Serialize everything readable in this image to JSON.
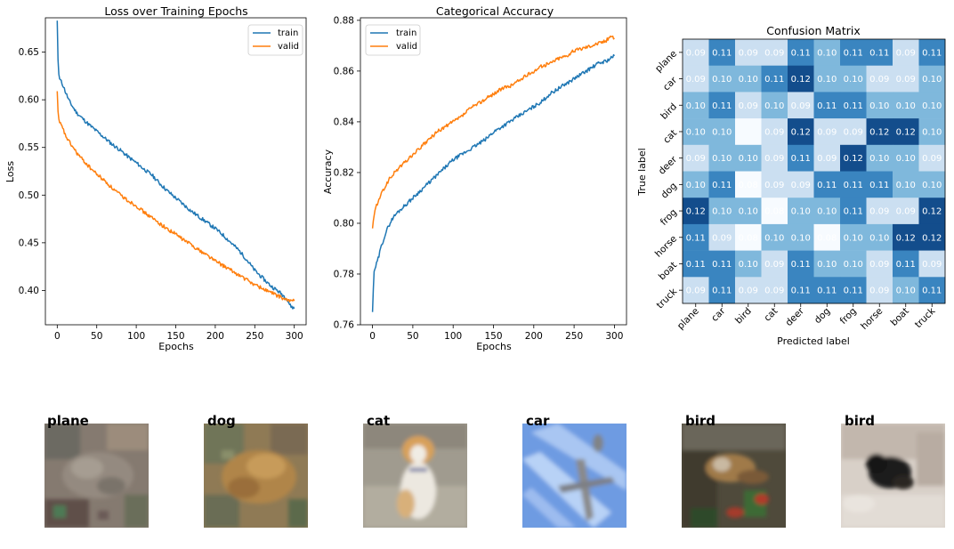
{
  "colors": {
    "train": "#1f77b4",
    "valid": "#ff7f0e",
    "axis": "#000000",
    "cmap_low": "#f7fbff",
    "cmap_high": "#08306b"
  },
  "chart_data": [
    {
      "type": "line",
      "title": "Loss over Training Epochs",
      "xlabel": "Epochs",
      "ylabel": "Loss",
      "xlim": [
        -15,
        315
      ],
      "ylim": [
        0.364,
        0.686
      ],
      "xticks": [
        0,
        50,
        100,
        150,
        200,
        250,
        300
      ],
      "yticks": [
        0.4,
        0.45,
        0.5,
        0.55,
        0.6,
        0.65
      ],
      "ytick_labels": [
        "0.40",
        "0.45",
        "0.50",
        "0.55",
        "0.60",
        "0.65"
      ],
      "grid": false,
      "legend": "top-right",
      "series": [
        {
          "name": "train",
          "x": [
            0,
            1,
            2,
            3,
            5,
            8,
            10,
            15,
            20,
            25,
            30,
            40,
            50,
            60,
            70,
            80,
            90,
            100,
            110,
            120,
            130,
            140,
            150,
            160,
            170,
            180,
            190,
            200,
            210,
            220,
            230,
            240,
            250,
            260,
            270,
            280,
            290,
            295,
            300
          ],
          "values": [
            0.683,
            0.642,
            0.627,
            0.622,
            0.619,
            0.614,
            0.609,
            0.599,
            0.592,
            0.586,
            0.582,
            0.574,
            0.567,
            0.56,
            0.553,
            0.547,
            0.54,
            0.534,
            0.527,
            0.521,
            0.512,
            0.504,
            0.497,
            0.49,
            0.483,
            0.477,
            0.471,
            0.465,
            0.458,
            0.45,
            0.442,
            0.432,
            0.421,
            0.413,
            0.405,
            0.399,
            0.392,
            0.384,
            0.381
          ]
        },
        {
          "name": "valid",
          "x": [
            0,
            1,
            2,
            3,
            5,
            8,
            10,
            15,
            20,
            25,
            30,
            40,
            50,
            60,
            70,
            80,
            90,
            100,
            110,
            120,
            130,
            140,
            150,
            160,
            170,
            180,
            190,
            200,
            210,
            220,
            230,
            240,
            250,
            260,
            270,
            280,
            290,
            295,
            300
          ],
          "values": [
            0.609,
            0.588,
            0.58,
            0.576,
            0.573,
            0.568,
            0.563,
            0.556,
            0.55,
            0.544,
            0.539,
            0.53,
            0.522,
            0.515,
            0.507,
            0.5,
            0.494,
            0.489,
            0.482,
            0.476,
            0.47,
            0.464,
            0.459,
            0.453,
            0.448,
            0.442,
            0.437,
            0.431,
            0.426,
            0.421,
            0.416,
            0.411,
            0.406,
            0.402,
            0.398,
            0.394,
            0.39,
            0.389,
            0.389
          ]
        }
      ]
    },
    {
      "type": "line",
      "title": "Categorical Accuracy",
      "xlabel": "Epochs",
      "ylabel": "Accuracy",
      "xlim": [
        -15,
        315
      ],
      "ylim": [
        0.76,
        0.881
      ],
      "xticks": [
        0,
        50,
        100,
        150,
        200,
        250,
        300
      ],
      "yticks": [
        0.76,
        0.78,
        0.8,
        0.82,
        0.84,
        0.86,
        0.88
      ],
      "ytick_labels": [
        "0.76",
        "0.78",
        "0.80",
        "0.82",
        "0.84",
        "0.86",
        "0.88"
      ],
      "grid": false,
      "legend": "top-left",
      "series": [
        {
          "name": "train",
          "x": [
            0,
            1,
            2,
            3,
            5,
            8,
            10,
            15,
            20,
            25,
            30,
            40,
            50,
            60,
            70,
            80,
            90,
            100,
            110,
            120,
            130,
            140,
            150,
            160,
            170,
            180,
            190,
            200,
            210,
            220,
            230,
            240,
            250,
            260,
            270,
            280,
            290,
            295,
            300
          ],
          "values": [
            0.765,
            0.774,
            0.781,
            0.782,
            0.784,
            0.787,
            0.79,
            0.795,
            0.799,
            0.802,
            0.804,
            0.807,
            0.81,
            0.813,
            0.816,
            0.819,
            0.822,
            0.825,
            0.827,
            0.829,
            0.831,
            0.833,
            0.836,
            0.838,
            0.84,
            0.842,
            0.844,
            0.846,
            0.848,
            0.851,
            0.853,
            0.855,
            0.857,
            0.859,
            0.861,
            0.863,
            0.864,
            0.865,
            0.866
          ]
        },
        {
          "name": "valid",
          "x": [
            0,
            1,
            2,
            3,
            5,
            8,
            10,
            15,
            20,
            25,
            30,
            40,
            50,
            60,
            70,
            80,
            90,
            100,
            110,
            120,
            130,
            140,
            150,
            160,
            170,
            180,
            190,
            200,
            210,
            220,
            230,
            240,
            250,
            260,
            270,
            280,
            290,
            295,
            300
          ],
          "values": [
            0.798,
            0.801,
            0.803,
            0.805,
            0.807,
            0.809,
            0.811,
            0.814,
            0.817,
            0.819,
            0.821,
            0.824,
            0.827,
            0.83,
            0.833,
            0.836,
            0.838,
            0.84,
            0.842,
            0.845,
            0.847,
            0.849,
            0.851,
            0.853,
            0.854,
            0.856,
            0.858,
            0.86,
            0.862,
            0.863,
            0.865,
            0.866,
            0.868,
            0.869,
            0.87,
            0.871,
            0.872,
            0.874,
            0.873
          ]
        }
      ]
    },
    {
      "type": "heatmap",
      "title": "Confusion Matrix",
      "xlabel": "Predicted label",
      "ylabel": "True label",
      "categories": [
        "plane",
        "car",
        "bird",
        "cat",
        "deer",
        "dog",
        "frog",
        "horse",
        "boat",
        "truck"
      ],
      "values": [
        [
          0.09,
          0.11,
          0.09,
          0.09,
          0.11,
          0.1,
          0.11,
          0.11,
          0.09,
          0.11
        ],
        [
          0.09,
          0.1,
          0.1,
          0.11,
          0.12,
          0.1,
          0.1,
          0.09,
          0.09,
          0.1
        ],
        [
          0.1,
          0.11,
          0.09,
          0.1,
          0.09,
          0.11,
          0.11,
          0.1,
          0.1,
          0.1
        ],
        [
          0.1,
          0.1,
          0.08,
          0.09,
          0.12,
          0.09,
          0.09,
          0.12,
          0.12,
          0.1
        ],
        [
          0.09,
          0.1,
          0.1,
          0.09,
          0.11,
          0.09,
          0.12,
          0.1,
          0.1,
          0.09
        ],
        [
          0.1,
          0.11,
          0.08,
          0.09,
          0.09,
          0.11,
          0.11,
          0.11,
          0.1,
          0.1
        ],
        [
          0.12,
          0.1,
          0.1,
          0.08,
          0.1,
          0.1,
          0.11,
          0.09,
          0.09,
          0.12
        ],
        [
          0.11,
          0.09,
          0.08,
          0.1,
          0.1,
          0.08,
          0.1,
          0.1,
          0.12,
          0.12
        ],
        [
          0.11,
          0.11,
          0.1,
          0.09,
          0.11,
          0.1,
          0.1,
          0.09,
          0.11,
          0.09
        ],
        [
          0.09,
          0.11,
          0.09,
          0.09,
          0.11,
          0.11,
          0.11,
          0.09,
          0.1,
          0.11
        ]
      ],
      "visible_values": [
        [
          "0.09",
          "0.11",
          "0.09",
          "0.09",
          "0.11",
          "0.10",
          "0.11",
          "0.11",
          "0.09",
          "0.11"
        ],
        [
          "0.09",
          "0.10",
          "0.10",
          "0.11",
          "0.12",
          "0.10",
          "0.10",
          "0.09",
          "0.09",
          "0.10"
        ],
        [
          "0.10",
          "0.11",
          "0.09",
          "0.10",
          "0.09",
          "0.11",
          "0.11",
          "0.10",
          "0.10",
          "0.10"
        ],
        [
          "0.10",
          "0.10",
          "",
          "0.09",
          "0.12",
          "0.09",
          "0.09",
          "0.12",
          "0.12",
          "0.10"
        ],
        [
          "0.09",
          "0.10",
          "0.10",
          "0.09",
          "0.11",
          "0.09",
          "0.12",
          "0.10",
          "0.10",
          "0.09"
        ],
        [
          "0.10",
          "0.11",
          "0.08",
          "0.09",
          "0.09",
          "0.11",
          "0.11",
          "0.11",
          "0.10",
          "0.10"
        ],
        [
          "0.12",
          "0.10",
          "0.10",
          "0.08",
          "0.10",
          "0.10",
          "0.11",
          "0.09",
          "0.09",
          "0.12"
        ],
        [
          "0.11",
          "0.09",
          "0.08",
          "0.10",
          "0.10",
          "0.08",
          "0.10",
          "0.10",
          "0.12",
          "0.12"
        ],
        [
          "0.11",
          "0.11",
          "0.10",
          "0.09",
          "0.11",
          "0.10",
          "0.10",
          "0.09",
          "0.11",
          "0.09"
        ],
        [
          "0.09",
          "0.11",
          "0.09",
          "0.09",
          "0.11",
          "0.11",
          "0.11",
          "0.09",
          "0.10",
          "0.11"
        ]
      ],
      "value_range": [
        0.08,
        0.125
      ]
    }
  ],
  "samples": [
    {
      "label": "plane",
      "image": "frog-thumbnail"
    },
    {
      "label": "dog",
      "image": "frog-thumbnail"
    },
    {
      "label": "cat",
      "image": "dog-thumbnail"
    },
    {
      "label": "car",
      "image": "airplane-thumbnail"
    },
    {
      "label": "bird",
      "image": "bird-thumbnail"
    },
    {
      "label": "bird",
      "image": "cat-thumbnail"
    }
  ]
}
